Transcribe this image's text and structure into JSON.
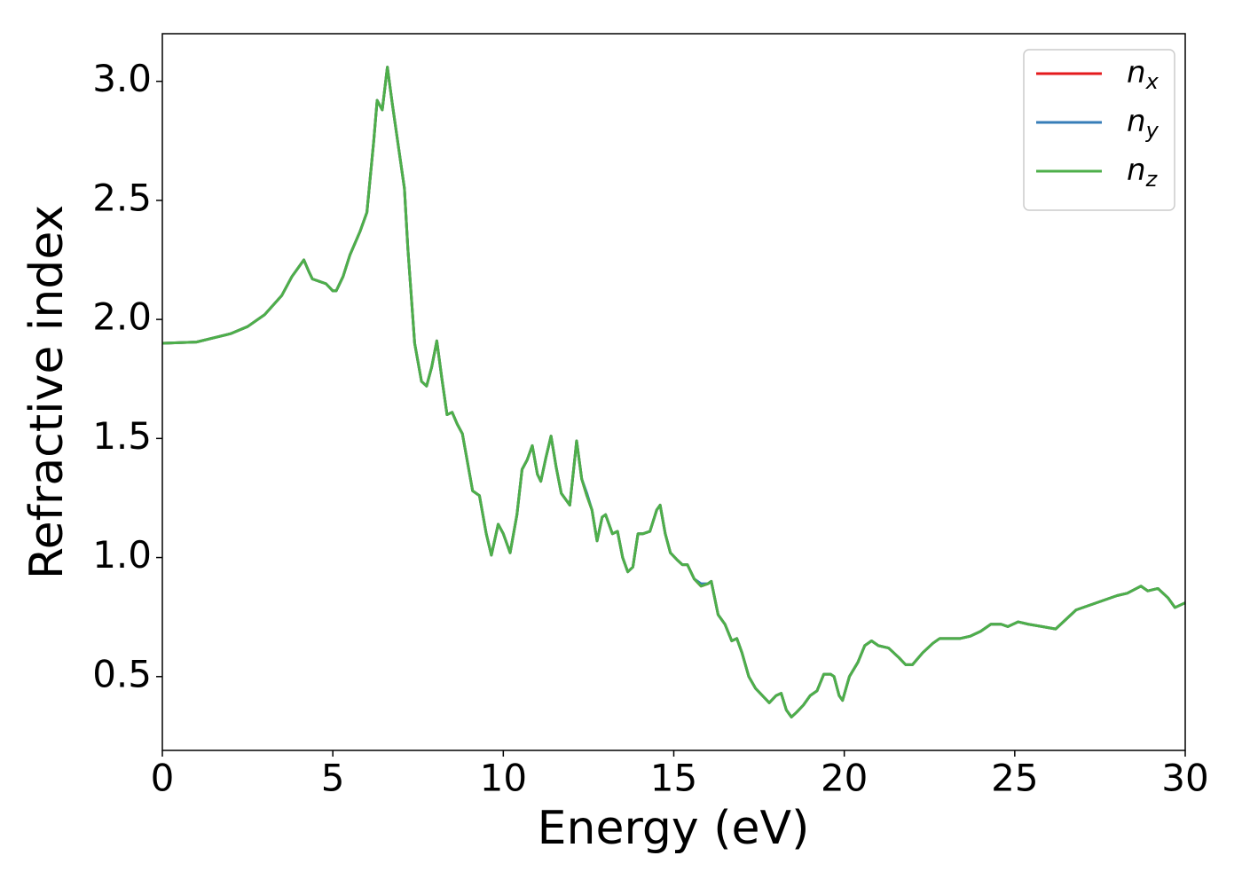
{
  "chart_data": {
    "type": "line",
    "xlabel": "Energy (eV)",
    "ylabel": "Refractive index",
    "x": [
      0,
      1,
      2,
      2.5,
      3,
      3.5,
      3.8,
      4,
      4.15,
      4.3,
      4.4,
      4.6,
      4.8,
      5,
      5.1,
      5.3,
      5.5,
      5.8,
      6,
      6.2,
      6.3,
      6.45,
      6.6,
      6.75,
      6.9,
      7.1,
      7.2,
      7.4,
      7.6,
      7.75,
      7.9,
      8.05,
      8.2,
      8.35,
      8.5,
      8.65,
      8.8,
      8.95,
      9.1,
      9.3,
      9.5,
      9.65,
      9.85,
      10,
      10.2,
      10.4,
      10.55,
      10.7,
      10.85,
      11,
      11.1,
      11.25,
      11.4,
      11.55,
      11.7,
      11.85,
      11.95,
      12.1,
      12.15,
      12.3,
      12.45,
      12.6,
      12.75,
      12.9,
      13,
      13.2,
      13.35,
      13.5,
      13.65,
      13.8,
      13.95,
      14.1,
      14.3,
      14.5,
      14.6,
      14.75,
      14.9,
      15.1,
      15.25,
      15.4,
      15.6,
      15.8,
      16,
      16.1,
      16.3,
      16.5,
      16.7,
      16.85,
      17,
      17.2,
      17.4,
      17.6,
      17.8,
      18,
      18.15,
      18.3,
      18.45,
      18.6,
      18.8,
      19,
      19.2,
      19.4,
      19.6,
      19.7,
      19.85,
      19.95,
      20.15,
      20.4,
      20.6,
      20.8,
      21,
      21.3,
      21.6,
      21.8,
      22,
      22.3,
      22.6,
      22.8,
      23.1,
      23.4,
      23.7,
      24,
      24.3,
      24.6,
      24.8,
      25.1,
      25.4,
      25.8,
      26.2,
      26.5,
      26.8,
      27.2,
      27.6,
      28,
      28.3,
      28.7,
      28.9,
      29.2,
      29.5,
      29.7,
      30
    ],
    "series": [
      {
        "name": "nx",
        "color": "#e41a1c",
        "values": [
          1.9,
          1.905,
          1.94,
          1.97,
          2.02,
          2.1,
          2.18,
          2.22,
          2.25,
          2.2,
          2.17,
          2.16,
          2.15,
          2.12,
          2.12,
          2.18,
          2.27,
          2.37,
          2.45,
          2.75,
          2.92,
          2.88,
          3.06,
          2.9,
          2.75,
          2.55,
          2.3,
          1.9,
          1.74,
          1.72,
          1.8,
          1.91,
          1.75,
          1.6,
          1.61,
          1.56,
          1.52,
          1.4,
          1.28,
          1.26,
          1.1,
          1.01,
          1.14,
          1.1,
          1.02,
          1.18,
          1.37,
          1.41,
          1.47,
          1.35,
          1.32,
          1.42,
          1.51,
          1.38,
          1.27,
          1.24,
          1.22,
          1.42,
          1.49,
          1.33,
          1.26,
          1.2,
          1.07,
          1.17,
          1.18,
          1.1,
          1.11,
          1.0,
          0.94,
          0.96,
          1.1,
          1.1,
          1.11,
          1.2,
          1.22,
          1.1,
          1.02,
          0.99,
          0.97,
          0.97,
          0.91,
          0.88,
          0.89,
          0.9,
          0.76,
          0.72,
          0.65,
          0.66,
          0.6,
          0.5,
          0.45,
          0.42,
          0.39,
          0.42,
          0.43,
          0.36,
          0.33,
          0.35,
          0.38,
          0.42,
          0.44,
          0.51,
          0.51,
          0.5,
          0.42,
          0.4,
          0.5,
          0.56,
          0.63,
          0.65,
          0.63,
          0.62,
          0.58,
          0.55,
          0.55,
          0.6,
          0.64,
          0.66,
          0.66,
          0.66,
          0.67,
          0.69,
          0.72,
          0.72,
          0.71,
          0.73,
          0.72,
          0.71,
          0.7,
          0.74,
          0.78,
          0.8,
          0.82,
          0.84,
          0.85,
          0.88,
          0.86,
          0.87,
          0.83,
          0.79,
          0.81
        ]
      },
      {
        "name": "ny",
        "color": "#377eb8",
        "values": [
          1.9,
          1.905,
          1.94,
          1.97,
          2.02,
          2.1,
          2.18,
          2.22,
          2.25,
          2.2,
          2.17,
          2.16,
          2.15,
          2.12,
          2.12,
          2.18,
          2.27,
          2.37,
          2.45,
          2.75,
          2.92,
          2.88,
          3.06,
          2.9,
          2.75,
          2.55,
          2.3,
          1.9,
          1.74,
          1.72,
          1.8,
          1.91,
          1.75,
          1.6,
          1.61,
          1.56,
          1.52,
          1.4,
          1.28,
          1.26,
          1.1,
          1.01,
          1.14,
          1.1,
          1.02,
          1.18,
          1.37,
          1.41,
          1.47,
          1.35,
          1.32,
          1.42,
          1.51,
          1.38,
          1.27,
          1.24,
          1.22,
          1.42,
          1.49,
          1.33,
          1.27,
          1.2,
          1.07,
          1.17,
          1.18,
          1.1,
          1.11,
          1.0,
          0.94,
          0.96,
          1.1,
          1.1,
          1.11,
          1.2,
          1.22,
          1.1,
          1.02,
          0.99,
          0.97,
          0.97,
          0.91,
          0.89,
          0.89,
          0.9,
          0.76,
          0.72,
          0.65,
          0.66,
          0.6,
          0.5,
          0.45,
          0.42,
          0.39,
          0.42,
          0.43,
          0.36,
          0.33,
          0.35,
          0.38,
          0.42,
          0.44,
          0.51,
          0.51,
          0.5,
          0.42,
          0.4,
          0.5,
          0.56,
          0.63,
          0.65,
          0.63,
          0.62,
          0.58,
          0.55,
          0.55,
          0.6,
          0.64,
          0.66,
          0.66,
          0.66,
          0.67,
          0.69,
          0.72,
          0.72,
          0.71,
          0.73,
          0.72,
          0.71,
          0.7,
          0.74,
          0.78,
          0.8,
          0.82,
          0.84,
          0.85,
          0.88,
          0.86,
          0.87,
          0.83,
          0.79,
          0.81
        ]
      },
      {
        "name": "nz",
        "color": "#4daf4a",
        "values": [
          1.9,
          1.905,
          1.94,
          1.97,
          2.02,
          2.1,
          2.18,
          2.22,
          2.25,
          2.2,
          2.17,
          2.16,
          2.15,
          2.12,
          2.12,
          2.18,
          2.27,
          2.37,
          2.45,
          2.75,
          2.92,
          2.88,
          3.06,
          2.9,
          2.75,
          2.55,
          2.3,
          1.9,
          1.74,
          1.72,
          1.8,
          1.91,
          1.75,
          1.6,
          1.61,
          1.56,
          1.52,
          1.4,
          1.28,
          1.26,
          1.1,
          1.01,
          1.14,
          1.1,
          1.02,
          1.18,
          1.37,
          1.41,
          1.47,
          1.35,
          1.32,
          1.42,
          1.51,
          1.38,
          1.27,
          1.24,
          1.22,
          1.42,
          1.49,
          1.33,
          1.26,
          1.2,
          1.07,
          1.17,
          1.18,
          1.1,
          1.11,
          1.0,
          0.94,
          0.96,
          1.1,
          1.1,
          1.11,
          1.2,
          1.22,
          1.1,
          1.02,
          0.99,
          0.97,
          0.97,
          0.91,
          0.88,
          0.89,
          0.9,
          0.76,
          0.72,
          0.65,
          0.66,
          0.6,
          0.5,
          0.45,
          0.42,
          0.39,
          0.42,
          0.43,
          0.36,
          0.33,
          0.35,
          0.38,
          0.42,
          0.44,
          0.51,
          0.51,
          0.5,
          0.42,
          0.4,
          0.5,
          0.56,
          0.63,
          0.65,
          0.63,
          0.62,
          0.58,
          0.55,
          0.55,
          0.6,
          0.64,
          0.66,
          0.66,
          0.66,
          0.67,
          0.69,
          0.72,
          0.72,
          0.71,
          0.73,
          0.72,
          0.71,
          0.7,
          0.74,
          0.78,
          0.8,
          0.82,
          0.84,
          0.85,
          0.88,
          0.86,
          0.87,
          0.83,
          0.79,
          0.81
        ]
      }
    ],
    "xlim": [
      0,
      30
    ],
    "xticks": [
      0,
      5,
      10,
      15,
      20,
      25,
      30
    ],
    "ylim": [
      0.19,
      3.2
    ],
    "yticks": [
      0.5,
      {
        "value": 1,
        "label": "1.0"
      },
      1.5,
      {
        "value": 2,
        "label": "2.0"
      },
      2.5,
      {
        "value": 3,
        "label": "3.0"
      }
    ],
    "grid": false,
    "legend": "upper right"
  }
}
